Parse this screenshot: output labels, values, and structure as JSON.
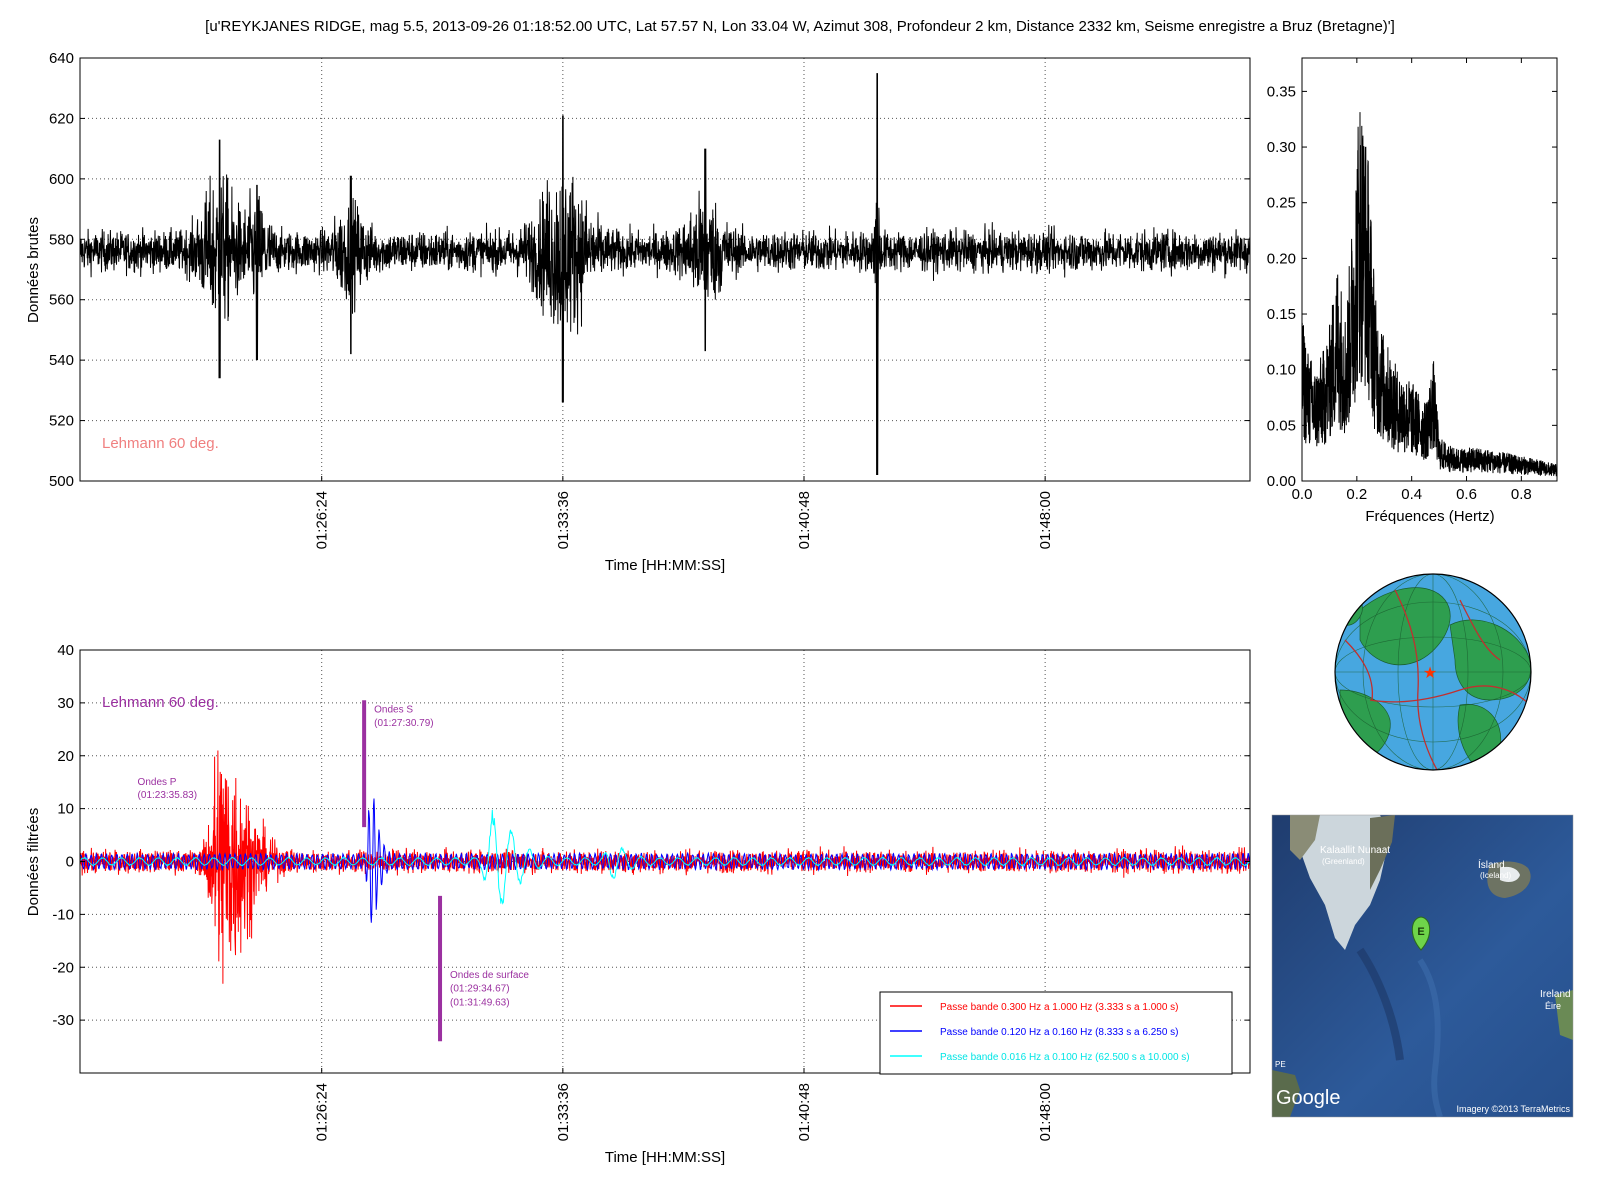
{
  "title": "[u'REYKJANES RIDGE, mag 5.5, 2013-09-26 01:18:52.00 UTC, Lat 57.57 N, Lon 33.04 W, Azimut 308, Profondeur 2 km, Distance 2332 km, Seisme enregistre a Bruz (Bretagne)']",
  "chart_data": [
    {
      "type": "line",
      "name": "raw",
      "xlabel": "Time [HH:MM:SS]",
      "ylabel": "Données brutes",
      "ylim": [
        500,
        640
      ],
      "yticks": [
        500,
        520,
        540,
        560,
        580,
        600,
        620,
        640
      ],
      "xtick_labels": [
        "01:26:24",
        "01:33:36",
        "01:40:48",
        "01:48:00"
      ],
      "xlim_s": [
        0,
        2096
      ],
      "xtick_s": [
        433,
        865,
        1297,
        1729
      ],
      "grid": true,
      "annotation": {
        "text": "Lehmann 60 deg.",
        "color": "#f08080"
      },
      "baseline": 576,
      "bursts": [
        {
          "t": 250,
          "amp": 42,
          "w": 35,
          "spike_hi": 613,
          "spike_lo": 534
        },
        {
          "t": 317,
          "amp": 26,
          "w": 22,
          "spike_hi": 598,
          "spike_lo": 540
        },
        {
          "t": 485,
          "amp": 22,
          "w": 30,
          "spike_hi": 601,
          "spike_lo": 542
        },
        {
          "t": 865,
          "amp": 48,
          "w": 48,
          "spike_hi": 621,
          "spike_lo": 526
        },
        {
          "t": 1120,
          "amp": 28,
          "w": 35,
          "spike_hi": 610,
          "spike_lo": 543
        },
        {
          "t": 1428,
          "amp": 60,
          "w": 4,
          "spike_hi": 635,
          "spike_lo": 502
        }
      ]
    },
    {
      "type": "line",
      "name": "spectrum",
      "xlabel": "Fréquences (Hertz)",
      "ylabel": "",
      "xlim": [
        0,
        0.93
      ],
      "ylim": [
        0,
        0.38
      ],
      "xticks": [
        0.0,
        0.2,
        0.4,
        0.6,
        0.8
      ],
      "xtick_labels": [
        "0.0",
        "0.2",
        "0.4",
        "0.6",
        "0.8"
      ],
      "yticks": [
        0,
        0.05,
        0.1,
        0.15,
        0.2,
        0.25,
        0.3,
        0.35
      ],
      "ytick_labels": [
        "0.00",
        "0.05",
        "0.10",
        "0.15",
        "0.20",
        "0.25",
        "0.30",
        "0.35"
      ],
      "envelope": [
        [
          0.0,
          0.15
        ],
        [
          0.02,
          0.12
        ],
        [
          0.05,
          0.1
        ],
        [
          0.08,
          0.12
        ],
        [
          0.1,
          0.14
        ],
        [
          0.13,
          0.2
        ],
        [
          0.16,
          0.15
        ],
        [
          0.19,
          0.26
        ],
        [
          0.21,
          0.36
        ],
        [
          0.24,
          0.3
        ],
        [
          0.27,
          0.16
        ],
        [
          0.3,
          0.13
        ],
        [
          0.35,
          0.1
        ],
        [
          0.4,
          0.09
        ],
        [
          0.45,
          0.07
        ],
        [
          0.48,
          0.11
        ],
        [
          0.5,
          0.04
        ],
        [
          0.55,
          0.03
        ],
        [
          0.65,
          0.03
        ],
        [
          0.75,
          0.025
        ],
        [
          0.85,
          0.02
        ],
        [
          0.93,
          0.015
        ]
      ]
    },
    {
      "type": "line",
      "name": "filtered",
      "xlabel": "Time [HH:MM:SS]",
      "ylabel": "Données filtrées",
      "ylim": [
        -40,
        40
      ],
      "yticks": [
        -30,
        -20,
        -10,
        0,
        10,
        20,
        30,
        40
      ],
      "xtick_labels": [
        "01:26:24",
        "01:33:36",
        "01:40:48",
        "01:48:00"
      ],
      "xlim_s": [
        0,
        2096
      ],
      "xtick_s": [
        433,
        865,
        1297,
        1729
      ],
      "grid": true,
      "annotation": {
        "text": "Lehmann 60 deg.",
        "color": "#9b30a0"
      },
      "series": [
        {
          "name": "Passe bande 0.300 Hz a 1.000 Hz (3.333 s a 1.000 s)",
          "color": "#ff0000",
          "noise": 2.5,
          "bursts": [
            {
              "t": 250,
              "amp": 28,
              "w": 70
            }
          ]
        },
        {
          "name": "Passe bande 0.120 Hz a 0.160 Hz (8.333 s a 6.250 s)",
          "color": "#0000ff",
          "noise": 1.6,
          "bursts": [
            {
              "t": 520,
              "amp": 12,
              "w": 22
            }
          ]
        },
        {
          "name": "Passe bande 0.016 Hz a 0.100 Hz (62.500 s a 10.000 s)",
          "color": "#00ffff",
          "noise": 0.8,
          "bursts": [
            {
              "t": 740,
              "amp": 9.5,
              "w": 60
            },
            {
              "t": 950,
              "amp": 3,
              "w": 40
            }
          ]
        }
      ],
      "markers": [
        {
          "label": "Ondes P",
          "times": [
            "(01:23:35.83)"
          ],
          "t": 250,
          "y_from": null,
          "y_to": null
        },
        {
          "label": "Ondes S",
          "times": [
            "(01:27:30.79)"
          ],
          "t": 509,
          "y_from": 6.5,
          "y_to": 30.5
        },
        {
          "label": "Ondes de surface",
          "times": [
            "(01:29:34.67)",
            "(01:31:49.63)"
          ],
          "t": 645,
          "y_from": -34,
          "y_to": -6.5
        }
      ]
    }
  ],
  "globe": {
    "caption": "",
    "land_color": "#2e9e4f",
    "ocean_color": "#47a7e0",
    "plate_color": "#c0302f",
    "epicenter_color": "#ff3300"
  },
  "map": {
    "labels": {
      "greenland": "Kalaallit Nunaat",
      "greenland_sub": "(Greenland)",
      "iceland": "Ísland",
      "iceland_sub": "(Iceland)",
      "ireland": "Ireland",
      "ireland_sub": "Éire",
      "pe": "PE",
      "marker": "E"
    },
    "brand": "Google",
    "credit": "Imagery ©2013 TerraMetrics"
  }
}
